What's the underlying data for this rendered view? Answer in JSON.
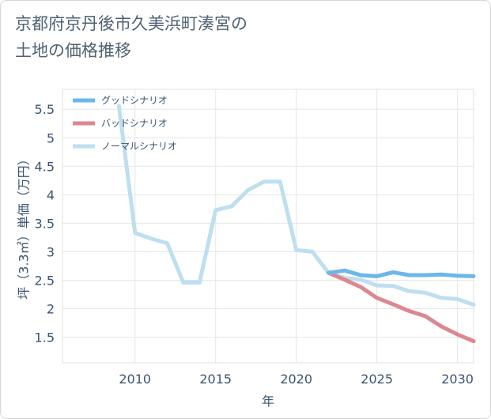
{
  "chart_data": {
    "type": "line",
    "title": "京都府京丹後市久美浜町湊宮の\n土地の価格推移",
    "xlabel": "年",
    "ylabel": "坪（3.3㎡）単価（万円）",
    "xlim": [
      2005.5,
      2031
    ],
    "ylim": [
      1.05,
      5.85
    ],
    "x_ticks": [
      2010,
      2015,
      2020,
      2025,
      2030
    ],
    "y_ticks": [
      1.5,
      2,
      2.5,
      3,
      3.5,
      4,
      4.5,
      5,
      5.5
    ],
    "grid": true,
    "legend_position": "top-left",
    "series": [
      {
        "name": "グッドシナリオ",
        "color": "#6cb7ea",
        "x": [
          2022,
          2023,
          2024,
          2025,
          2026,
          2027,
          2028,
          2029,
          2030,
          2031
        ],
        "y": [
          2.63,
          2.67,
          2.59,
          2.57,
          2.64,
          2.59,
          2.59,
          2.6,
          2.58,
          2.57
        ]
      },
      {
        "name": "バッドシナリオ",
        "color": "#dc8890",
        "x": [
          2022,
          2023,
          2024,
          2025,
          2026,
          2027,
          2028,
          2029,
          2030,
          2031
        ],
        "y": [
          2.63,
          2.51,
          2.38,
          2.19,
          2.08,
          1.96,
          1.87,
          1.69,
          1.55,
          1.43
        ]
      },
      {
        "name": "ノーマルシナリオ",
        "color": "#bddff0",
        "x": [
          2009,
          2010,
          2011,
          2012,
          2013,
          2014,
          2015,
          2016,
          2017,
          2018,
          2019,
          2020,
          2021,
          2022,
          2023,
          2024,
          2025,
          2026,
          2027,
          2028,
          2029,
          2030,
          2031
        ],
        "y": [
          5.56,
          3.33,
          3.23,
          3.15,
          2.46,
          2.46,
          3.73,
          3.8,
          4.08,
          4.23,
          4.23,
          3.03,
          3.0,
          2.63,
          2.54,
          2.51,
          2.41,
          2.4,
          2.31,
          2.28,
          2.19,
          2.17,
          2.07
        ]
      }
    ]
  }
}
